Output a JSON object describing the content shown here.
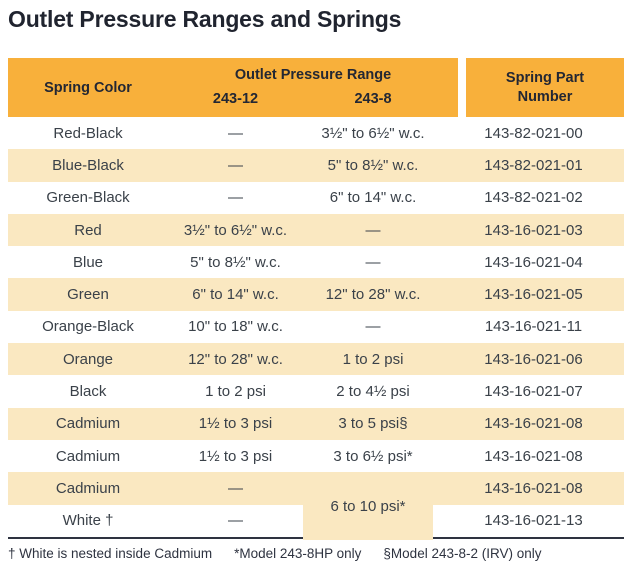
{
  "title": "Outlet Pressure Ranges and Springs",
  "table": {
    "header": {
      "spring_color": "Spring Color",
      "outlet_pressure_range": "Outlet Pressure Range",
      "col_243_12": "243-12",
      "col_243_8": "243-8",
      "spring_part_number": "Spring Part Number"
    },
    "rows": [
      {
        "color": "Red-Black",
        "r12": "—",
        "r8": "3½\" to 6½\" w.c.",
        "part": "143-82-021-00"
      },
      {
        "color": "Blue-Black",
        "r12": "—",
        "r8": "5\" to 8½\" w.c.",
        "part": "143-82-021-01"
      },
      {
        "color": "Green-Black",
        "r12": "—",
        "r8": "6\" to 14\" w.c.",
        "part": "143-82-021-02"
      },
      {
        "color": "Red",
        "r12": "3½\" to 6½\" w.c.",
        "r8": "—",
        "part": "143-16-021-03"
      },
      {
        "color": "Blue",
        "r12": "5\" to 8½\" w.c.",
        "r8": "—",
        "part": "143-16-021-04"
      },
      {
        "color": "Green",
        "r12": "6\" to 14\" w.c.",
        "r8": "12\" to 28\" w.c.",
        "part": "143-16-021-05"
      },
      {
        "color": "Orange-Black",
        "r12": "10\" to 18\" w.c.",
        "r8": "—",
        "part": "143-16-021-11"
      },
      {
        "color": "Orange",
        "r12": "12\" to 28\" w.c.",
        "r8": "1 to 2 psi",
        "part": "143-16-021-06"
      },
      {
        "color": "Black",
        "r12": "1 to 2 psi",
        "r8": "2 to 4½ psi",
        "part": "143-16-021-07"
      },
      {
        "color": "Cadmium",
        "r12": "1½ to 3 psi",
        "r8": "3 to 5 psi§",
        "part": "143-16-021-08"
      },
      {
        "color": "Cadmium",
        "r12": "1½ to 3 psi",
        "r8": "3 to 6½ psi*",
        "part": "143-16-021-08"
      },
      {
        "color": "Cadmium",
        "r12": "—",
        "r8": "",
        "part": "143-16-021-08"
      },
      {
        "color": "White †",
        "r12": "—",
        "r8": "",
        "part": "143-16-021-13"
      }
    ],
    "merged_cell_243_8": "6 to 10 psi*"
  },
  "footnotes": [
    "† White is nested inside Cadmium",
    "*Model 243-8HP only",
    "§Model 243-8-2 (IRV) only"
  ],
  "colors": {
    "header_bg": "#f8b03b",
    "row_alt_bg": "#fae8c1",
    "title_text": "#20242f",
    "body_text": "#3a4149",
    "rule": "#2e3340"
  }
}
